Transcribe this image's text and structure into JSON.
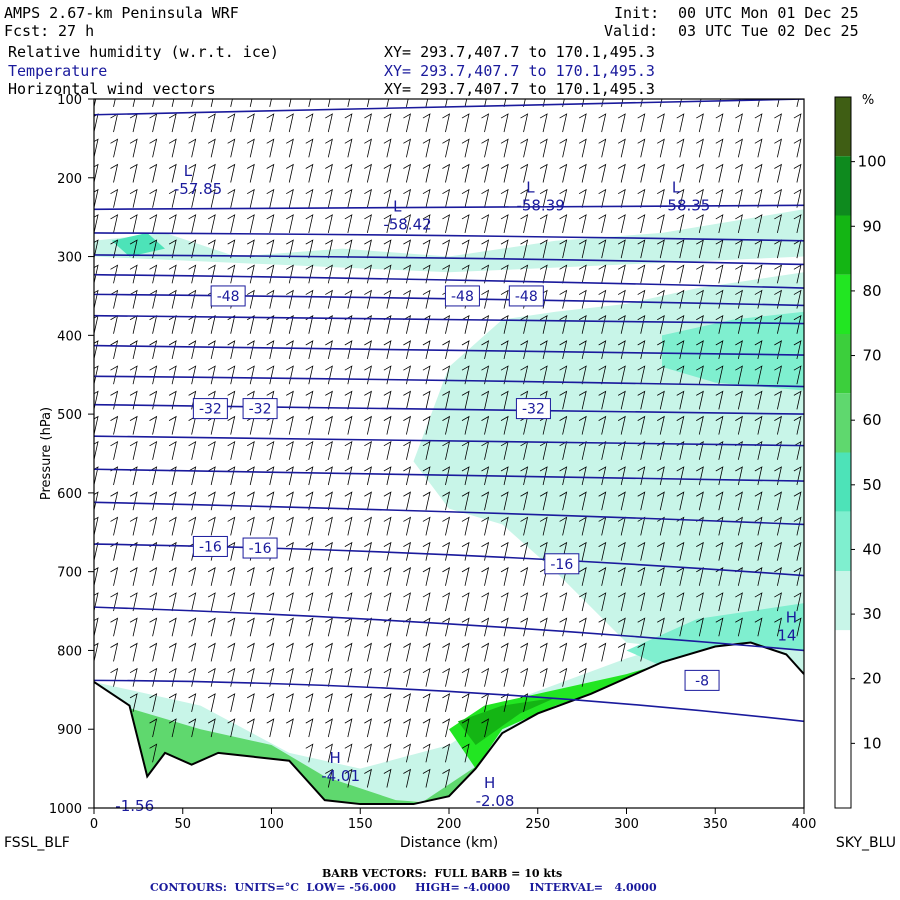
{
  "header": {
    "model": "AMPS 2.67-km Peninsula WRF",
    "fcst_label": "Fcst:",
    "fcst_value": "27 h",
    "init_label": "Init:",
    "init_value": "00 UTC Mon 01 Dec 25",
    "valid_label": "Valid:",
    "valid_value": "03 UTC Tue 02 Dec 25"
  },
  "fields": [
    {
      "name": "Relative humidity (w.r.t. ice)",
      "xy": "XY= 293.7,407.7 to 170.1,495.3"
    },
    {
      "name": "Temperature",
      "xy": "XY= 293.7,407.7 to 170.1,495.3"
    },
    {
      "name": "Horizontal wind vectors",
      "xy": "XY= 293.7,407.7 to 170.1,495.3"
    }
  ],
  "chart_data": {
    "type": "cross-section",
    "xlabel": "Distance (km)",
    "ylabel": "Pressure (hPa)",
    "xlim": [
      0,
      400
    ],
    "ylim": [
      1000,
      100
    ],
    "x_ticks": [
      "0",
      "50",
      "100",
      "150",
      "200",
      "250",
      "300",
      "350",
      "400"
    ],
    "y_ticks": [
      "100",
      "200",
      "300",
      "400",
      "500",
      "600",
      "700",
      "800",
      "900",
      "1000"
    ],
    "left_endpoint": "FSSL_BLF",
    "right_endpoint": "SKY_BLU",
    "colorbar": {
      "unit": "%",
      "labels": [
        "10",
        "20",
        "30",
        "40",
        "50",
        "60",
        "70",
        "80",
        "90",
        "100"
      ],
      "colors": [
        "#ffffff",
        "#ffffff",
        "#ffffff",
        "#c8f5e8",
        "#7fefcf",
        "#4de3b8",
        "#5fd86e",
        "#3ccf3c",
        "#22e622",
        "#14b514",
        "#0e8a1e",
        "#3f5e14"
      ]
    },
    "temperature_contours": [
      {
        "label": "-48",
        "p": 350,
        "pts": [
          [
            0,
            338
          ],
          [
            100,
            340
          ],
          [
            200,
            345
          ],
          [
            300,
            350
          ],
          [
            400,
            360
          ]
        ]
      },
      {
        "label": "-32",
        "p": 500,
        "pts": [
          [
            0,
            488
          ],
          [
            100,
            493
          ],
          [
            200,
            496
          ],
          [
            300,
            495
          ],
          [
            400,
            500
          ]
        ]
      },
      {
        "label": "-16",
        "p": 680,
        "pts": [
          [
            0,
            665
          ],
          [
            100,
            669
          ],
          [
            200,
            674
          ],
          [
            300,
            690
          ],
          [
            400,
            705
          ]
        ]
      }
    ],
    "temperature_labels": [
      {
        "text": "-48",
        "x": 75,
        "p": 350
      },
      {
        "text": "-48",
        "x": 207,
        "p": 350
      },
      {
        "text": "-48",
        "x": 243,
        "p": 350
      },
      {
        "text": "-32",
        "x": 65,
        "p": 493
      },
      {
        "text": "-32",
        "x": 93,
        "p": 493
      },
      {
        "text": "-32",
        "x": 247,
        "p": 493
      },
      {
        "text": "-16",
        "x": 65,
        "p": 668
      },
      {
        "text": "-16",
        "x": 93,
        "p": 670
      },
      {
        "text": "-16",
        "x": 263,
        "p": 690
      },
      {
        "text": "-8",
        "x": 342,
        "p": 838
      }
    ],
    "extrema": [
      {
        "type": "L",
        "value": "-57.85",
        "x": 45,
        "p": 213
      },
      {
        "type": "L",
        "value": "-58.42",
        "x": 163,
        "p": 258
      },
      {
        "type": "L",
        "value": "-58.39",
        "x": 238,
        "p": 234
      },
      {
        "type": "L",
        "value": "-58.35",
        "x": 320,
        "p": 234
      },
      {
        "type": "H",
        "value": "-4.01",
        "x": 128,
        "p": 958
      },
      {
        "type": "H",
        "value": "-2.08",
        "x": 215,
        "p": 990
      },
      {
        "type": "H",
        "value": "14",
        "x": 385,
        "p": 780
      },
      {
        "type": "",
        "value": "-1.56",
        "x": 12,
        "p": 996
      }
    ],
    "terrain_profile": [
      [
        0,
        840
      ],
      [
        20,
        870
      ],
      [
        30,
        960
      ],
      [
        40,
        930
      ],
      [
        55,
        945
      ],
      [
        70,
        930
      ],
      [
        90,
        935
      ],
      [
        110,
        940
      ],
      [
        118,
        960
      ],
      [
        130,
        990
      ],
      [
        150,
        995
      ],
      [
        180,
        995
      ],
      [
        200,
        985
      ],
      [
        215,
        950
      ],
      [
        230,
        905
      ],
      [
        250,
        880
      ],
      [
        280,
        855
      ],
      [
        320,
        815
      ],
      [
        350,
        795
      ],
      [
        370,
        790
      ],
      [
        390,
        805
      ],
      [
        400,
        830
      ]
    ],
    "barb_info": "BARB VECTORS:  FULL BARB = 10 kts",
    "contour_info": "CONTOURS:  UNITS=°C  LOW= -56.000     HIGH= -4.0000     INTERVAL=   4.0000"
  }
}
